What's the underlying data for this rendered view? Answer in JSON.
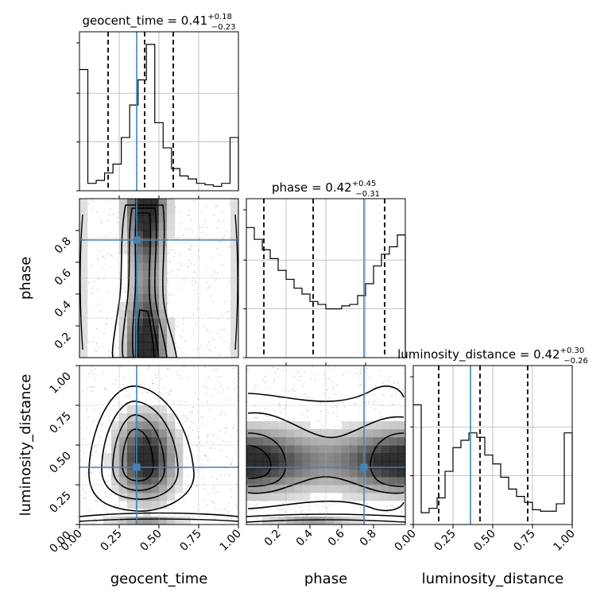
{
  "chart_data": {
    "type": "corner",
    "colors": {
      "truth": "#4682b4",
      "hist": "#000000",
      "quantile": "#000000",
      "scatter": "#b0b0b0"
    },
    "parameters": [
      {
        "name": "geocent_time",
        "range": [
          0,
          1
        ],
        "truth": 0.36,
        "title": {
          "prefix": "geocent_time = 0.41",
          "plus": "+0.18",
          "minus": "−0.23"
        },
        "quantiles": [
          0.18,
          0.41,
          0.59
        ]
      },
      {
        "name": "phase",
        "range": [
          0,
          1
        ],
        "truth": 0.74,
        "title": {
          "prefix": "phase = 0.42",
          "plus": "+0.45",
          "minus": "−0.31"
        },
        "quantiles": [
          0.11,
          0.42,
          0.87
        ]
      },
      {
        "name": "luminosity_distance",
        "range": [
          0,
          1
        ],
        "truth": 0.36,
        "title": {
          "prefix": "luminosity_distance = 0.42",
          "plus": "+0.30",
          "minus": "−0.26"
        },
        "quantiles": [
          0.16,
          0.42,
          0.72
        ]
      }
    ],
    "histograms": [
      {
        "param": "geocent_time",
        "values": [
          0.82,
          0.05,
          0.07,
          0.12,
          0.18,
          0.36,
          0.58,
          0.75,
          0.99,
          0.46,
          0.29,
          0.15,
          0.1,
          0.08,
          0.05,
          0.04,
          0.03,
          0.05,
          0.36
        ]
      },
      {
        "param": "phase",
        "values": [
          0.88,
          0.8,
          0.73,
          0.67,
          0.59,
          0.53,
          0.47,
          0.43,
          0.38,
          0.36,
          0.33,
          0.33,
          0.35,
          0.36,
          0.42,
          0.5,
          0.62,
          0.7,
          0.75,
          0.83
        ]
      },
      {
        "param": "luminosity_distance",
        "values": [
          0.81,
          0.08,
          0.11,
          0.18,
          0.36,
          0.52,
          0.57,
          0.62,
          0.59,
          0.47,
          0.41,
          0.32,
          0.24,
          0.19,
          0.15,
          0.1,
          0.09,
          0.09,
          0.14,
          0.62
        ]
      }
    ],
    "axis_ticks": {
      "geocent_time": [
        "0.00",
        "0.25",
        "0.50",
        "0.75",
        "1.00"
      ],
      "phase": [
        "0.2",
        "0.4",
        "0.6",
        "0.8"
      ],
      "luminosity_distance": [
        "0.00",
        "0.25",
        "0.50",
        "0.75",
        "1.00"
      ]
    },
    "grid": true
  }
}
